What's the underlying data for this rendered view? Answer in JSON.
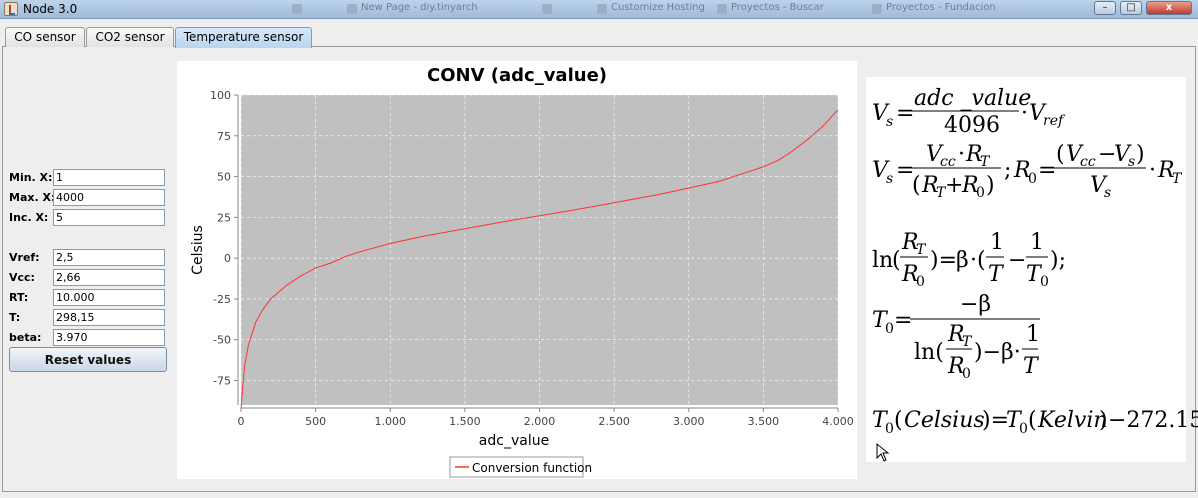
{
  "window": {
    "title": "Node 3.0",
    "background_tabs": [
      "",
      "New Page - diy.tinyarch",
      "",
      "Customize Hosting",
      "Proyectos - Buscar",
      "Proyectos - Fundacion"
    ],
    "buttons": {
      "minimize": "–",
      "maximize": "□",
      "close": "x"
    }
  },
  "tabs": [
    {
      "label": "CO sensor",
      "active": false
    },
    {
      "label": "CO2 sensor",
      "active": false
    },
    {
      "label": "Temperature sensor",
      "active": true
    }
  ],
  "form": {
    "min_x": {
      "label": "Min. X:",
      "value": "1"
    },
    "max_x": {
      "label": "Max. X:",
      "value": "4000"
    },
    "inc_x": {
      "label": "Inc. X:",
      "value": "5"
    },
    "vref": {
      "label": "Vref:",
      "value": "2,5"
    },
    "vcc": {
      "label": "Vcc:",
      "value": "2,66"
    },
    "rt": {
      "label": "RT:",
      "value": "10.000"
    },
    "t": {
      "label": "T:",
      "value": "298,15"
    },
    "beta": {
      "label": "beta:",
      "value": "3.970"
    },
    "reset_label": "Reset values"
  },
  "chart_data": {
    "type": "line",
    "title": "CONV (adc_value)",
    "xlabel": "adc_value",
    "ylabel": "Celsius",
    "xlim": [
      0,
      4000
    ],
    "ylim": [
      -90,
      100
    ],
    "x_ticks": [
      0,
      500,
      1000,
      1500,
      2000,
      2500,
      3000,
      3500,
      4000
    ],
    "x_tick_labels": [
      "0",
      "500",
      "1.000",
      "1.500",
      "2.000",
      "2.500",
      "3.000",
      "3.500",
      "4.000"
    ],
    "y_ticks": [
      100,
      75,
      50,
      25,
      0,
      -25,
      -50,
      -75
    ],
    "y_tick_labels": [
      "100",
      "75",
      "50",
      "25",
      "0",
      "-25",
      "-50",
      "-75"
    ],
    "grid": true,
    "legend_placement": "bottom",
    "plot_background": "#c0c0c0",
    "series": [
      {
        "name": "Conversion function",
        "color": "#ff3333",
        "x": [
          1,
          10,
          25,
          50,
          100,
          150,
          200,
          300,
          400,
          500,
          600,
          700,
          800,
          1000,
          1200,
          1500,
          1800,
          2000,
          2200,
          2500,
          2800,
          3000,
          3200,
          3400,
          3500,
          3600,
          3700,
          3800,
          3900,
          4000
        ],
        "y": [
          -92,
          -80,
          -66,
          -53,
          -39,
          -31,
          -25,
          -17,
          -11,
          -6,
          -3,
          1,
          4,
          9,
          13,
          18,
          23,
          26,
          29,
          34,
          39,
          43,
          47,
          53,
          56,
          60,
          66,
          73,
          81,
          91
        ]
      }
    ]
  },
  "formulas": {
    "vs_a": {
      "lhs": "V",
      "lhs_sub": "s",
      "num": "adc _value",
      "den": "4096",
      "tail": "V",
      "tail_sub": "ref"
    },
    "vs_b": {
      "num_a": "V",
      "num_a_sub": "cc",
      "num_b": "R",
      "num_b_sub": "T",
      "den_a": "R",
      "den_a_sub": "T",
      "den_b": "R",
      "den_b_sub": "0"
    },
    "r0": {
      "lhs": "R",
      "lhs_sub": "0",
      "num_a": "V",
      "num_a_sub": "cc",
      "num_b": "V",
      "num_b_sub": "s",
      "den": "V",
      "den_sub": "s",
      "tail": "R",
      "tail_sub": "T"
    },
    "ln_eq": {
      "ln": "ln",
      "beta": "β",
      "one": "1",
      "T": "T",
      "T0": "T",
      "T0_sub": "0"
    },
    "t0": {
      "lhs": "T",
      "lhs_sub": "0",
      "minus_beta": "−β"
    },
    "celsius": {
      "text_a": "T",
      "sub": "0",
      "celsius": "Celsius",
      "kelvin": "Kelvin",
      "tail": "−272.15"
    }
  }
}
